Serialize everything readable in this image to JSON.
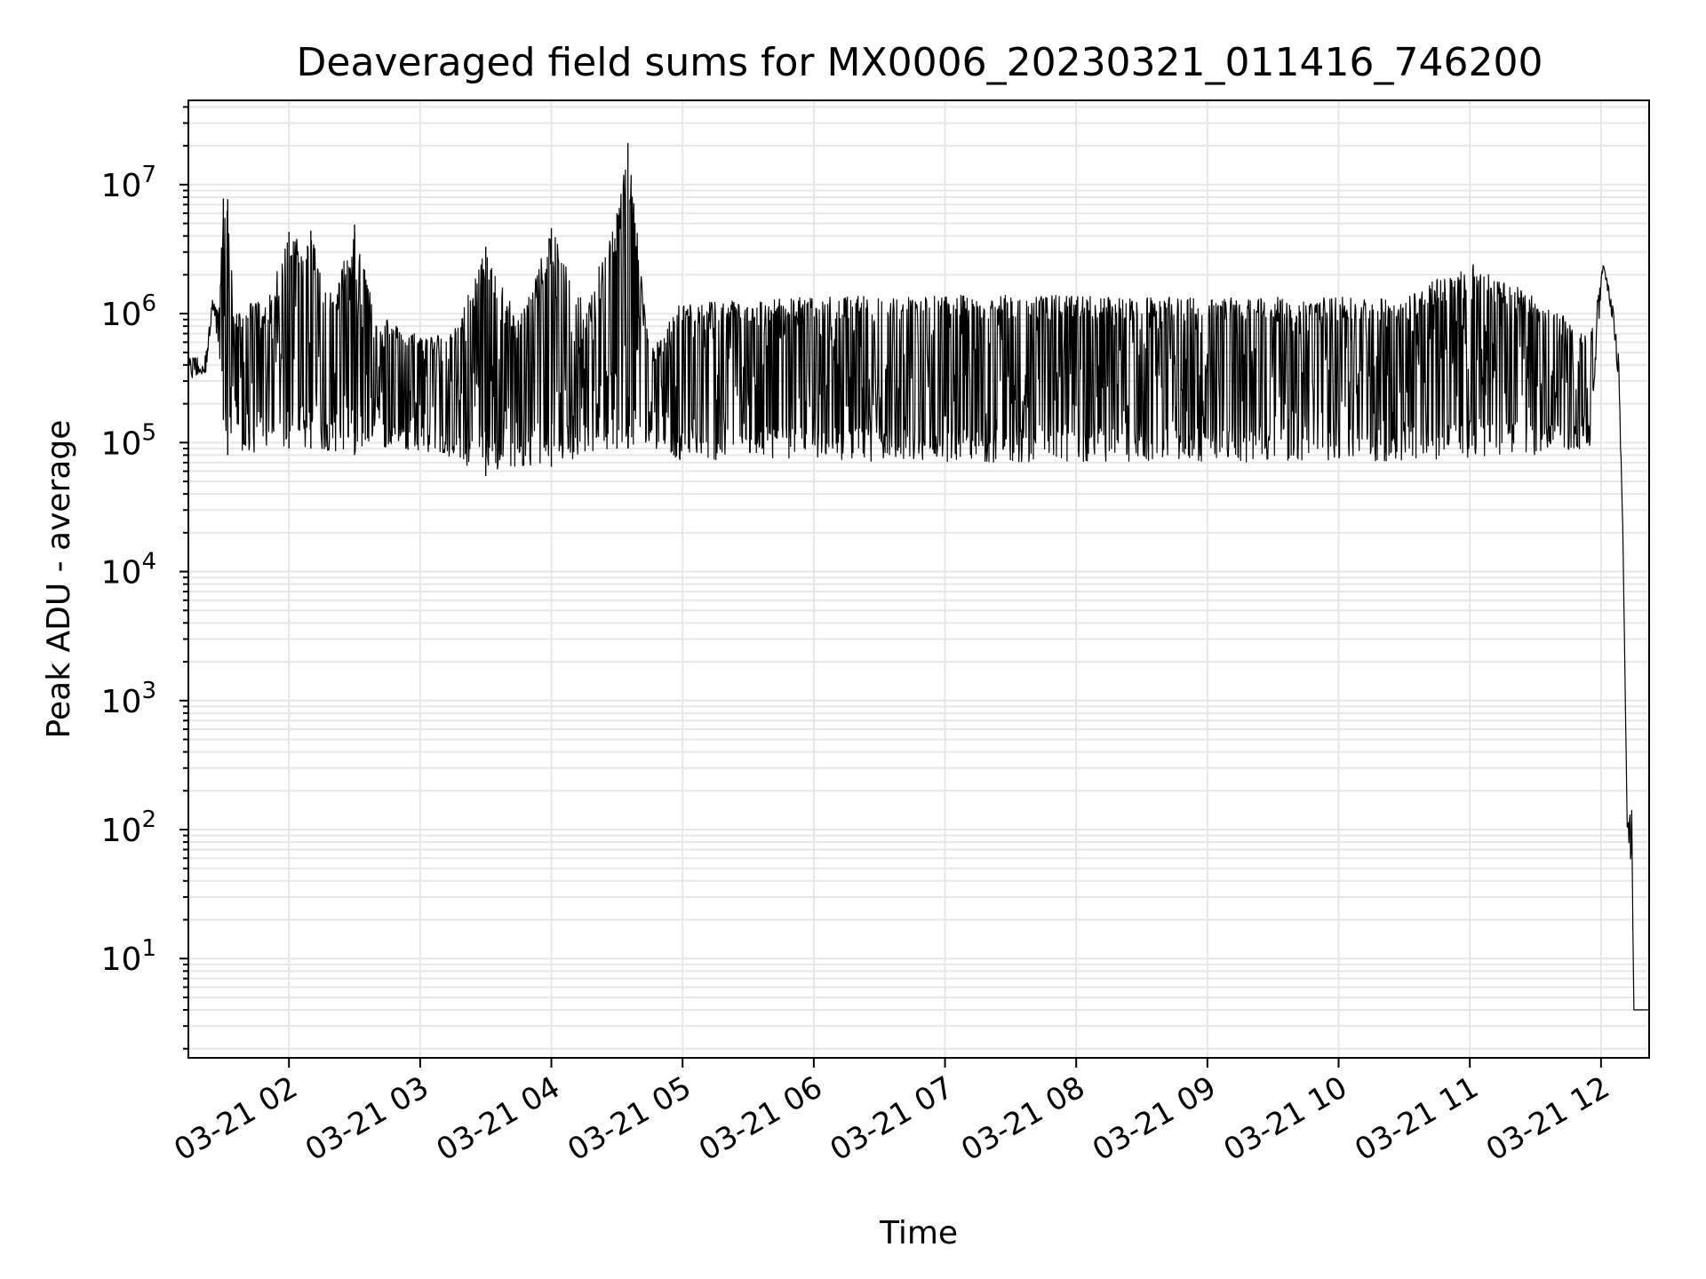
{
  "chart_data": {
    "type": "line",
    "title": "Deaveraged field sums for MX0006_20230321_011416_746200",
    "xlabel": "Time",
    "ylabel": "Peak ADU - average",
    "x_scale": "time",
    "y_scale": "log",
    "xlim": [
      "2023-03-21 01:14",
      "2023-03-21 12:22"
    ],
    "ylim": [
      1.7,
      45000000
    ],
    "grid": true,
    "legend": "none",
    "x_tick_labels": [
      "03-21 02",
      "03-21 03",
      "03-21 04",
      "03-21 05",
      "03-21 06",
      "03-21 07",
      "03-21 08",
      "03-21 09",
      "03-21 10",
      "03-21 11",
      "03-21 12"
    ],
    "y_ticks": [
      {
        "base": "10",
        "exp": "1",
        "value": 10
      },
      {
        "base": "10",
        "exp": "2",
        "value": 100
      },
      {
        "base": "10",
        "exp": "3",
        "value": 1000
      },
      {
        "base": "10",
        "exp": "4",
        "value": 10000
      },
      {
        "base": "10",
        "exp": "5",
        "value": 100000
      },
      {
        "base": "10",
        "exp": "6",
        "value": 1000000
      },
      {
        "base": "10",
        "exp": "7",
        "value": 10000000
      }
    ],
    "line_color": "#000000",
    "series": [
      {
        "x": [
          "2023-03-21 01:14",
          "2023-03-21 01:22",
          "2023-03-21 01:25",
          "2023-03-21 01:28",
          "2023-03-21 01:30",
          "2023-03-21 01:32",
          "2023-03-21 01:35",
          "2023-03-21 01:38",
          "2023-03-21 01:42",
          "2023-03-21 01:45",
          "2023-03-21 01:50",
          "2023-03-21 02:00",
          "2023-03-21 02:10",
          "2023-03-21 02:20",
          "2023-03-21 02:30",
          "2023-03-21 02:40",
          "2023-03-21 02:50",
          "2023-03-21 03:00",
          "2023-03-21 03:15",
          "2023-03-21 03:30",
          "2023-03-21 03:45",
          "2023-03-21 04:00",
          "2023-03-21 04:15",
          "2023-03-21 04:30",
          "2023-03-21 04:35",
          "2023-03-21 04:45",
          "2023-03-21 05:00",
          "2023-03-21 05:30",
          "2023-03-21 06:00",
          "2023-03-21 06:30",
          "2023-03-21 07:00",
          "2023-03-21 07:30",
          "2023-03-21 08:00",
          "2023-03-21 08:30",
          "2023-03-21 09:00",
          "2023-03-21 09:30",
          "2023-03-21 10:00",
          "2023-03-21 10:30",
          "2023-03-21 11:00",
          "2023-03-21 11:30",
          "2023-03-21 11:55",
          "2023-03-21 12:01",
          "2023-03-21 12:05",
          "2023-03-21 12:08",
          "2023-03-21 12:10",
          "2023-03-21 12:12",
          "2023-03-21 12:14",
          "2023-03-21 12:15",
          "2023-03-21 12:16",
          "2023-03-21 12:18",
          "2023-03-21 12:22"
        ],
        "upper": [
          450000,
          500000,
          1300000,
          1000000,
          7800000,
          7700000,
          1000000,
          1100000,
          1200000,
          1300000,
          1200000,
          4300000,
          4400000,
          1300000,
          4900000,
          1100000,
          800000,
          700000,
          700000,
          3300000,
          900000,
          4600000,
          1200000,
          6000000,
          21000000,
          500000,
          1300000,
          1300000,
          1350000,
          1400000,
          1400000,
          1400000,
          1400000,
          1350000,
          1350000,
          1350000,
          1350000,
          1350000,
          2600000,
          1350000,
          700000,
          2400000,
          1300000,
          500000,
          20000,
          100,
          170,
          4,
          4,
          4,
          4
        ],
        "lower": [
          300000,
          350000,
          1000000,
          500000,
          150000,
          80000,
          90000,
          80000,
          80000,
          80000,
          90000,
          90000,
          90000,
          85000,
          80000,
          90000,
          90000,
          85000,
          70000,
          55000,
          65000,
          65000,
          80000,
          90000,
          90000,
          95000,
          70000,
          75000,
          75000,
          70000,
          70000,
          70000,
          70000,
          70000,
          70000,
          70000,
          70000,
          70000,
          75000,
          80000,
          90000,
          2400000,
          900000,
          300000,
          20000,
          100,
          40,
          4,
          4,
          4,
          4
        ]
      }
    ]
  }
}
